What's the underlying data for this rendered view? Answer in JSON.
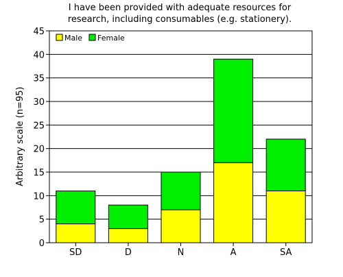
{
  "chart_data": {
    "type": "bar",
    "stacked": true,
    "title": [
      "I have been provided with adequate resources for",
      "research, including consumables (e.g. stationery)."
    ],
    "xlabel": "",
    "ylabel": "Arbitrary scale (n=95)",
    "categories": [
      "SD",
      "D",
      "N",
      "A",
      "SA"
    ],
    "series": [
      {
        "name": "Male",
        "color": "#ffff00",
        "values": [
          4,
          3,
          7,
          17,
          11
        ]
      },
      {
        "name": "Female",
        "color": "#00ee00",
        "values": [
          7,
          5,
          8,
          22,
          11
        ]
      }
    ],
    "ylim": [
      0,
      45
    ],
    "yticks": [
      0,
      5,
      10,
      15,
      20,
      25,
      30,
      35,
      40,
      45
    ],
    "grid": true,
    "legend_position": "top-left"
  }
}
